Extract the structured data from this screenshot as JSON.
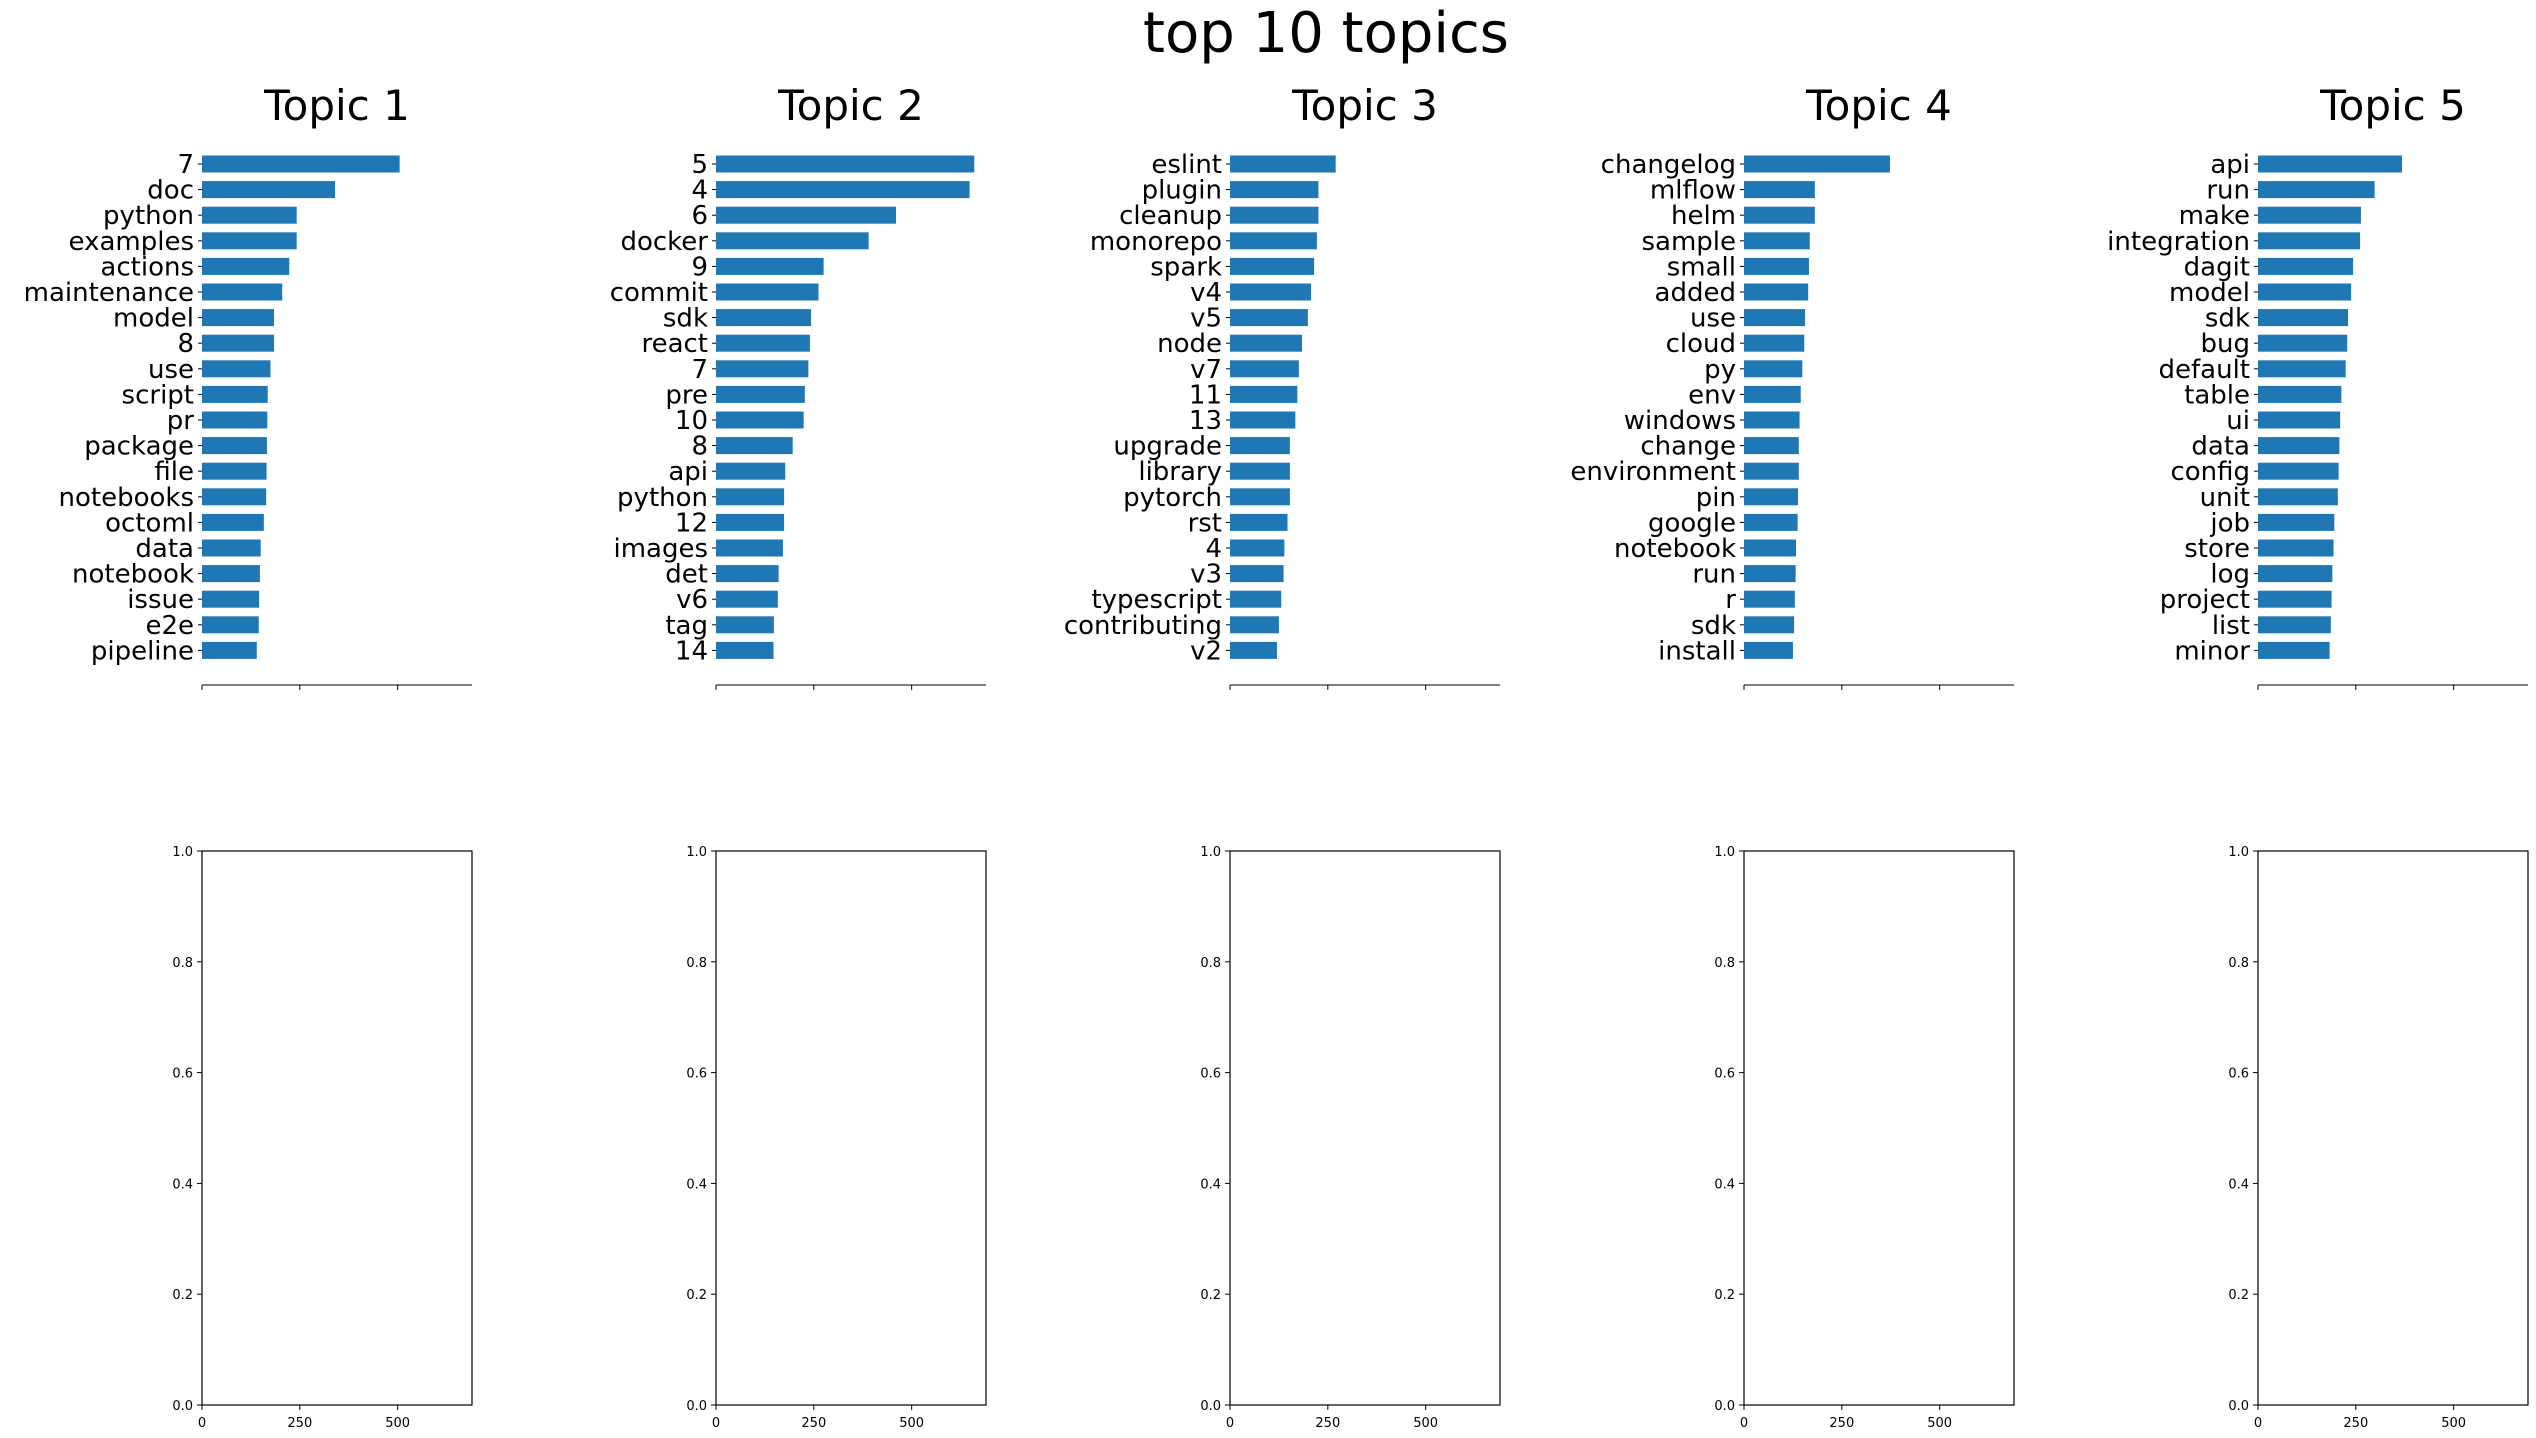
{
  "figure_title": "top 10 topics",
  "colors": {
    "bar": "#1f77b4",
    "axis": "#000000",
    "background": "#ffffff"
  },
  "chart_data": [
    {
      "type": "bar",
      "orientation": "horizontal",
      "title": "Topic 1",
      "xlim": [
        0,
        690
      ],
      "xticks": [
        0,
        250,
        500
      ],
      "xtick_labels_visible": false,
      "spines_visible": "bottom",
      "categories": [
        "7",
        "doc",
        "python",
        "examples",
        "actions",
        "maintenance",
        "model",
        "8",
        "use",
        "script",
        "pr",
        "package",
        "file",
        "notebooks",
        "octoml",
        "data",
        "notebook",
        "issue",
        "e2e",
        "pipeline"
      ],
      "values": [
        505,
        340,
        242,
        242,
        223,
        205,
        184,
        184,
        175,
        168,
        167,
        166,
        165,
        164,
        158,
        150,
        148,
        146,
        145,
        140
      ]
    },
    {
      "type": "bar",
      "orientation": "horizontal",
      "title": "Topic 2",
      "xlim": [
        0,
        690
      ],
      "xticks": [
        0,
        250,
        500
      ],
      "xtick_labels_visible": false,
      "spines_visible": "bottom",
      "categories": [
        "5",
        "4",
        "6",
        "docker",
        "9",
        "commit",
        "sdk",
        "react",
        "7",
        "pre",
        "10",
        "8",
        "api",
        "python",
        "12",
        "images",
        "det",
        "v6",
        "tag",
        "14"
      ],
      "values": [
        660,
        648,
        460,
        390,
        275,
        262,
        243,
        240,
        236,
        227,
        224,
        196,
        177,
        174,
        174,
        171,
        160,
        158,
        148,
        147
      ]
    },
    {
      "type": "bar",
      "orientation": "horizontal",
      "title": "Topic 3",
      "xlim": [
        0,
        690
      ],
      "xticks": [
        0,
        250,
        500
      ],
      "xtick_labels_visible": false,
      "spines_visible": "bottom",
      "categories": [
        "eslint",
        "plugin",
        "cleanup",
        "monorepo",
        "spark",
        "v4",
        "v5",
        "node",
        "v7",
        "11",
        "13",
        "upgrade",
        "library",
        "pytorch",
        "rst",
        "4",
        "v3",
        "typescript",
        "contributing",
        "v2"
      ],
      "values": [
        270,
        226,
        226,
        222,
        215,
        207,
        199,
        184,
        176,
        172,
        167,
        153,
        153,
        153,
        147,
        139,
        137,
        131,
        125,
        120
      ]
    },
    {
      "type": "bar",
      "orientation": "horizontal",
      "title": "Topic 4",
      "xlim": [
        0,
        690
      ],
      "xticks": [
        0,
        250,
        500
      ],
      "xtick_labels_visible": false,
      "spines_visible": "bottom",
      "categories": [
        "changelog",
        "mlflow",
        "helm",
        "sample",
        "small",
        "added",
        "use",
        "cloud",
        "py",
        "env",
        "windows",
        "change",
        "environment",
        "pin",
        "google",
        "notebook",
        "run",
        "r",
        "sdk",
        "install"
      ],
      "values": [
        373,
        181,
        181,
        168,
        166,
        164,
        156,
        154,
        149,
        145,
        142,
        140,
        140,
        138,
        137,
        133,
        132,
        130,
        128,
        125
      ]
    },
    {
      "type": "bar",
      "orientation": "horizontal",
      "title": "Topic 5",
      "xlim": [
        0,
        690
      ],
      "xticks": [
        0,
        250,
        500
      ],
      "xtick_labels_visible": false,
      "spines_visible": "bottom",
      "categories": [
        "api",
        "run",
        "make",
        "integration",
        "dagit",
        "model",
        "sdk",
        "bug",
        "default",
        "table",
        "ui",
        "data",
        "config",
        "unit",
        "job",
        "store",
        "log",
        "project",
        "list",
        "minor"
      ],
      "values": [
        368,
        298,
        263,
        261,
        243,
        238,
        230,
        228,
        224,
        213,
        210,
        208,
        206,
        204,
        195,
        193,
        190,
        188,
        186,
        183
      ]
    },
    {
      "type": "empty",
      "xlim": [
        0,
        690
      ],
      "ylim": [
        0,
        1
      ],
      "xticks": [
        0,
        250,
        500
      ],
      "xtick_labels": [
        "0",
        "250",
        "500"
      ],
      "yticks": [
        0,
        0.2,
        0.4,
        0.6,
        0.8,
        1.0
      ],
      "ytick_labels": [
        "0.0",
        "0.2",
        "0.4",
        "0.6",
        "0.8",
        "1.0"
      ]
    },
    {
      "type": "empty",
      "xlim": [
        0,
        690
      ],
      "ylim": [
        0,
        1
      ],
      "xticks": [
        0,
        250,
        500
      ],
      "xtick_labels": [
        "0",
        "250",
        "500"
      ],
      "yticks": [
        0,
        0.2,
        0.4,
        0.6,
        0.8,
        1.0
      ],
      "ytick_labels": [
        "0.0",
        "0.2",
        "0.4",
        "0.6",
        "0.8",
        "1.0"
      ]
    },
    {
      "type": "empty",
      "xlim": [
        0,
        690
      ],
      "ylim": [
        0,
        1
      ],
      "xticks": [
        0,
        250,
        500
      ],
      "xtick_labels": [
        "0",
        "250",
        "500"
      ],
      "yticks": [
        0,
        0.2,
        0.4,
        0.6,
        0.8,
        1.0
      ],
      "ytick_labels": [
        "0.0",
        "0.2",
        "0.4",
        "0.6",
        "0.8",
        "1.0"
      ]
    },
    {
      "type": "empty",
      "xlim": [
        0,
        690
      ],
      "ylim": [
        0,
        1
      ],
      "xticks": [
        0,
        250,
        500
      ],
      "xtick_labels": [
        "0",
        "250",
        "500"
      ],
      "yticks": [
        0,
        0.2,
        0.4,
        0.6,
        0.8,
        1.0
      ],
      "ytick_labels": [
        "0.0",
        "0.2",
        "0.4",
        "0.6",
        "0.8",
        "1.0"
      ]
    },
    {
      "type": "empty",
      "xlim": [
        0,
        690
      ],
      "ylim": [
        0,
        1
      ],
      "xticks": [
        0,
        250,
        500
      ],
      "xtick_labels": [
        "0",
        "250",
        "500"
      ],
      "yticks": [
        0,
        0.2,
        0.4,
        0.6,
        0.8,
        1.0
      ],
      "ytick_labels": [
        "0.0",
        "0.2",
        "0.4",
        "0.6",
        "0.8",
        "1.0"
      ]
    }
  ]
}
